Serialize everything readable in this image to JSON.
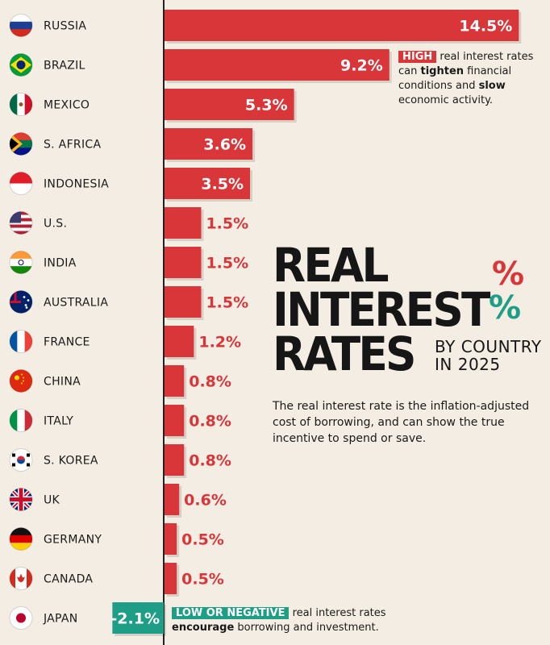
{
  "chart_data": {
    "type": "bar",
    "orientation": "horizontal",
    "title": "REAL INTEREST RATES",
    "subtitle": "BY COUNTRY IN 2025",
    "categories": [
      "RUSSIA",
      "BRAZIL",
      "MEXICO",
      "S. AFRICA",
      "INDONESIA",
      "U.S.",
      "INDIA",
      "AUSTRALIA",
      "FRANCE",
      "CHINA",
      "ITALY",
      "S. KOREA",
      "UK",
      "GERMANY",
      "CANADA",
      "JAPAN"
    ],
    "values": [
      14.5,
      9.2,
      5.3,
      3.6,
      3.5,
      1.5,
      1.5,
      1.5,
      1.2,
      0.8,
      0.8,
      0.8,
      0.6,
      0.5,
      0.5,
      -2.1
    ],
    "labels": [
      "14.5%",
      "9.2%",
      "5.3%",
      "3.6%",
      "3.5%",
      "1.5%",
      "1.5%",
      "1.5%",
      "1.2%",
      "0.8%",
      "0.8%",
      "0.8%",
      "0.6%",
      "0.5%",
      "0.5%",
      "-2.1%"
    ],
    "xlabel": "",
    "ylabel": "",
    "xlim": [
      -2.1,
      14.5
    ],
    "grid": false,
    "positive_color": "#d9363a",
    "negative_color": "#1e9e86",
    "flags": [
      "russia-flag-icon",
      "brazil-flag-icon",
      "mexico-flag-icon",
      "south-africa-flag-icon",
      "indonesia-flag-icon",
      "us-flag-icon",
      "india-flag-icon",
      "australia-flag-icon",
      "france-flag-icon",
      "china-flag-icon",
      "italy-flag-icon",
      "south-korea-flag-icon",
      "uk-flag-icon",
      "germany-flag-icon",
      "canada-flag-icon",
      "japan-flag-icon"
    ]
  },
  "header": {
    "title_line1": "REAL",
    "title_line2": "INTEREST",
    "title_line3": "RATES",
    "subtitle_line1": "BY COUNTRY",
    "subtitle_line2": "IN 2025",
    "percent_symbol": "%",
    "description": "The real interest rate is the inflation-adjusted cost of borrowing, and can show the true incentive to spend or save."
  },
  "annotations": {
    "high": {
      "tag": "HIGH",
      "text1": " real interest rates can ",
      "bold": "tighten",
      "text2": " financial conditions and ",
      "bold2": "slow",
      "text3": " economic activity."
    },
    "low": {
      "tag": "LOW OR NEGATIVE",
      "text1": " real interest rates ",
      "bold": "encourage",
      "text2": " borrowing and investment."
    }
  }
}
